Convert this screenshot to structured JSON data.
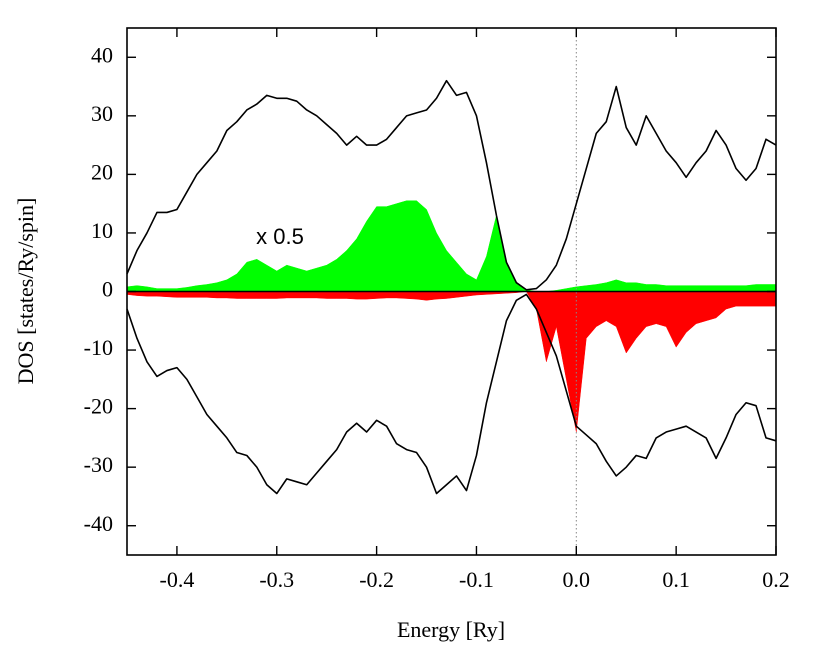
{
  "chart_data": {
    "type": "line",
    "xlabel": "Energy [Ry]",
    "ylabel": "DOS [states/Ry/spin]",
    "annotations": [
      "x 0.5"
    ],
    "xlim": [
      -0.45,
      0.2
    ],
    "ylim": [
      -45,
      45
    ],
    "xticks": [
      -0.4,
      -0.3,
      -0.2,
      -0.1,
      {
        "value": 0,
        "label": "0.0"
      },
      0.1,
      0.2
    ],
    "yticks": [
      -40,
      -30,
      -20,
      -10,
      0,
      10,
      20,
      30,
      40
    ],
    "vlines": [
      0
    ],
    "zero_line": true,
    "x": [
      -0.45,
      -0.44,
      -0.43,
      -0.42,
      -0.41,
      -0.4,
      -0.39,
      -0.38,
      -0.37,
      -0.36,
      -0.35,
      -0.34,
      -0.33,
      -0.32,
      -0.31,
      -0.3,
      -0.29,
      -0.28,
      -0.27,
      -0.26,
      -0.25,
      -0.24,
      -0.23,
      -0.22,
      -0.21,
      -0.2,
      -0.19,
      -0.18,
      -0.17,
      -0.16,
      -0.15,
      -0.14,
      -0.13,
      -0.12,
      -0.11,
      -0.1,
      -0.09,
      -0.08,
      -0.07,
      -0.06,
      -0.05,
      -0.04,
      -0.03,
      -0.02,
      -0.01,
      0.0,
      0.01,
      0.02,
      0.03,
      0.04,
      0.05,
      0.06,
      0.07,
      0.08,
      0.09,
      0.1,
      0.11,
      0.12,
      0.13,
      0.14,
      0.15,
      0.16,
      0.17,
      0.18,
      0.19,
      0.2
    ],
    "series": [
      {
        "color": "#00ff00",
        "style": "area",
        "values": [
          0.8,
          1,
          0.8,
          0.5,
          0.5,
          0.5,
          0.7,
          1,
          1.2,
          1.5,
          2,
          3,
          5,
          5.5,
          4.5,
          3.5,
          4.5,
          4,
          3.5,
          4,
          4.5,
          5.5,
          7,
          9,
          12,
          14.5,
          14.5,
          15,
          15.5,
          15.5,
          14,
          10,
          7,
          5,
          3,
          2,
          6,
          13,
          5,
          1.5,
          0.3,
          0,
          0,
          0.2,
          0.5,
          0.8,
          1,
          1.2,
          1.5,
          2,
          1.5,
          1.5,
          1.2,
          1.2,
          1,
          1,
          1,
          1,
          1,
          1,
          1,
          1,
          1,
          1.2,
          1.2,
          1.2
        ]
      },
      {
        "color": "#ff0000",
        "style": "area",
        "values": [
          -0.5,
          -0.7,
          -0.8,
          -0.8,
          -0.9,
          -1,
          -1,
          -1,
          -1,
          -1.1,
          -1.1,
          -1.2,
          -1.2,
          -1.2,
          -1.2,
          -1.2,
          -1.1,
          -1.1,
          -1.1,
          -1.1,
          -1.2,
          -1.2,
          -1.2,
          -1.3,
          -1.3,
          -1.2,
          -1.1,
          -1.1,
          -1.2,
          -1.3,
          -1.5,
          -1.3,
          -1.2,
          -1,
          -0.8,
          -0.6,
          -0.5,
          -0.4,
          -0.3,
          -0.2,
          0,
          -3,
          -12,
          -6,
          -15,
          -24,
          -8,
          -6,
          -5,
          -6,
          -10.5,
          -8,
          -6,
          -5.5,
          -6,
          -9.5,
          -7,
          -5.5,
          -5,
          -4.5,
          -3,
          -2.5,
          -2.5,
          -2.5,
          -2.5,
          -2.5
        ]
      },
      {
        "color": "#000000",
        "style": "line",
        "values": [
          3,
          7,
          10,
          13.5,
          13.5,
          14,
          17,
          20,
          22,
          24,
          27.5,
          29,
          31,
          32,
          33.5,
          33,
          33,
          32.5,
          31,
          30,
          28.5,
          27,
          25,
          26.5,
          25,
          25,
          26,
          28,
          30,
          30.5,
          31,
          33,
          36,
          33.5,
          34,
          30,
          22,
          13,
          5,
          1.5,
          0.3,
          0.5,
          2,
          4.5,
          9,
          15,
          21,
          27,
          29,
          35,
          28,
          25,
          30,
          27,
          24,
          22,
          19.5,
          22,
          24,
          27.5,
          25,
          21,
          19,
          21,
          26,
          25
        ]
      },
      {
        "color": "#000000",
        "style": "line",
        "values": [
          -3,
          -8,
          -12,
          -14.5,
          -13.5,
          -13,
          -15,
          -18,
          -21,
          -23,
          -25,
          -27.5,
          -28,
          -30,
          -33,
          -34.5,
          -32,
          -32.5,
          -33,
          -31,
          -29,
          -27,
          -24,
          -22.5,
          -24,
          -22,
          -23,
          -26,
          -27,
          -27.5,
          -30,
          -34.5,
          -33,
          -31.5,
          -34,
          -28,
          -19,
          -12,
          -5,
          -1.5,
          -0.5,
          -3,
          -7,
          -11,
          -17,
          -23,
          -24.5,
          -26,
          -29,
          -31.5,
          -30,
          -28,
          -28.5,
          -25,
          -24,
          -23.5,
          -23,
          -24,
          -25,
          -28.5,
          -25,
          -21,
          -19,
          -19.5,
          -25,
          -25.5
        ]
      }
    ]
  }
}
